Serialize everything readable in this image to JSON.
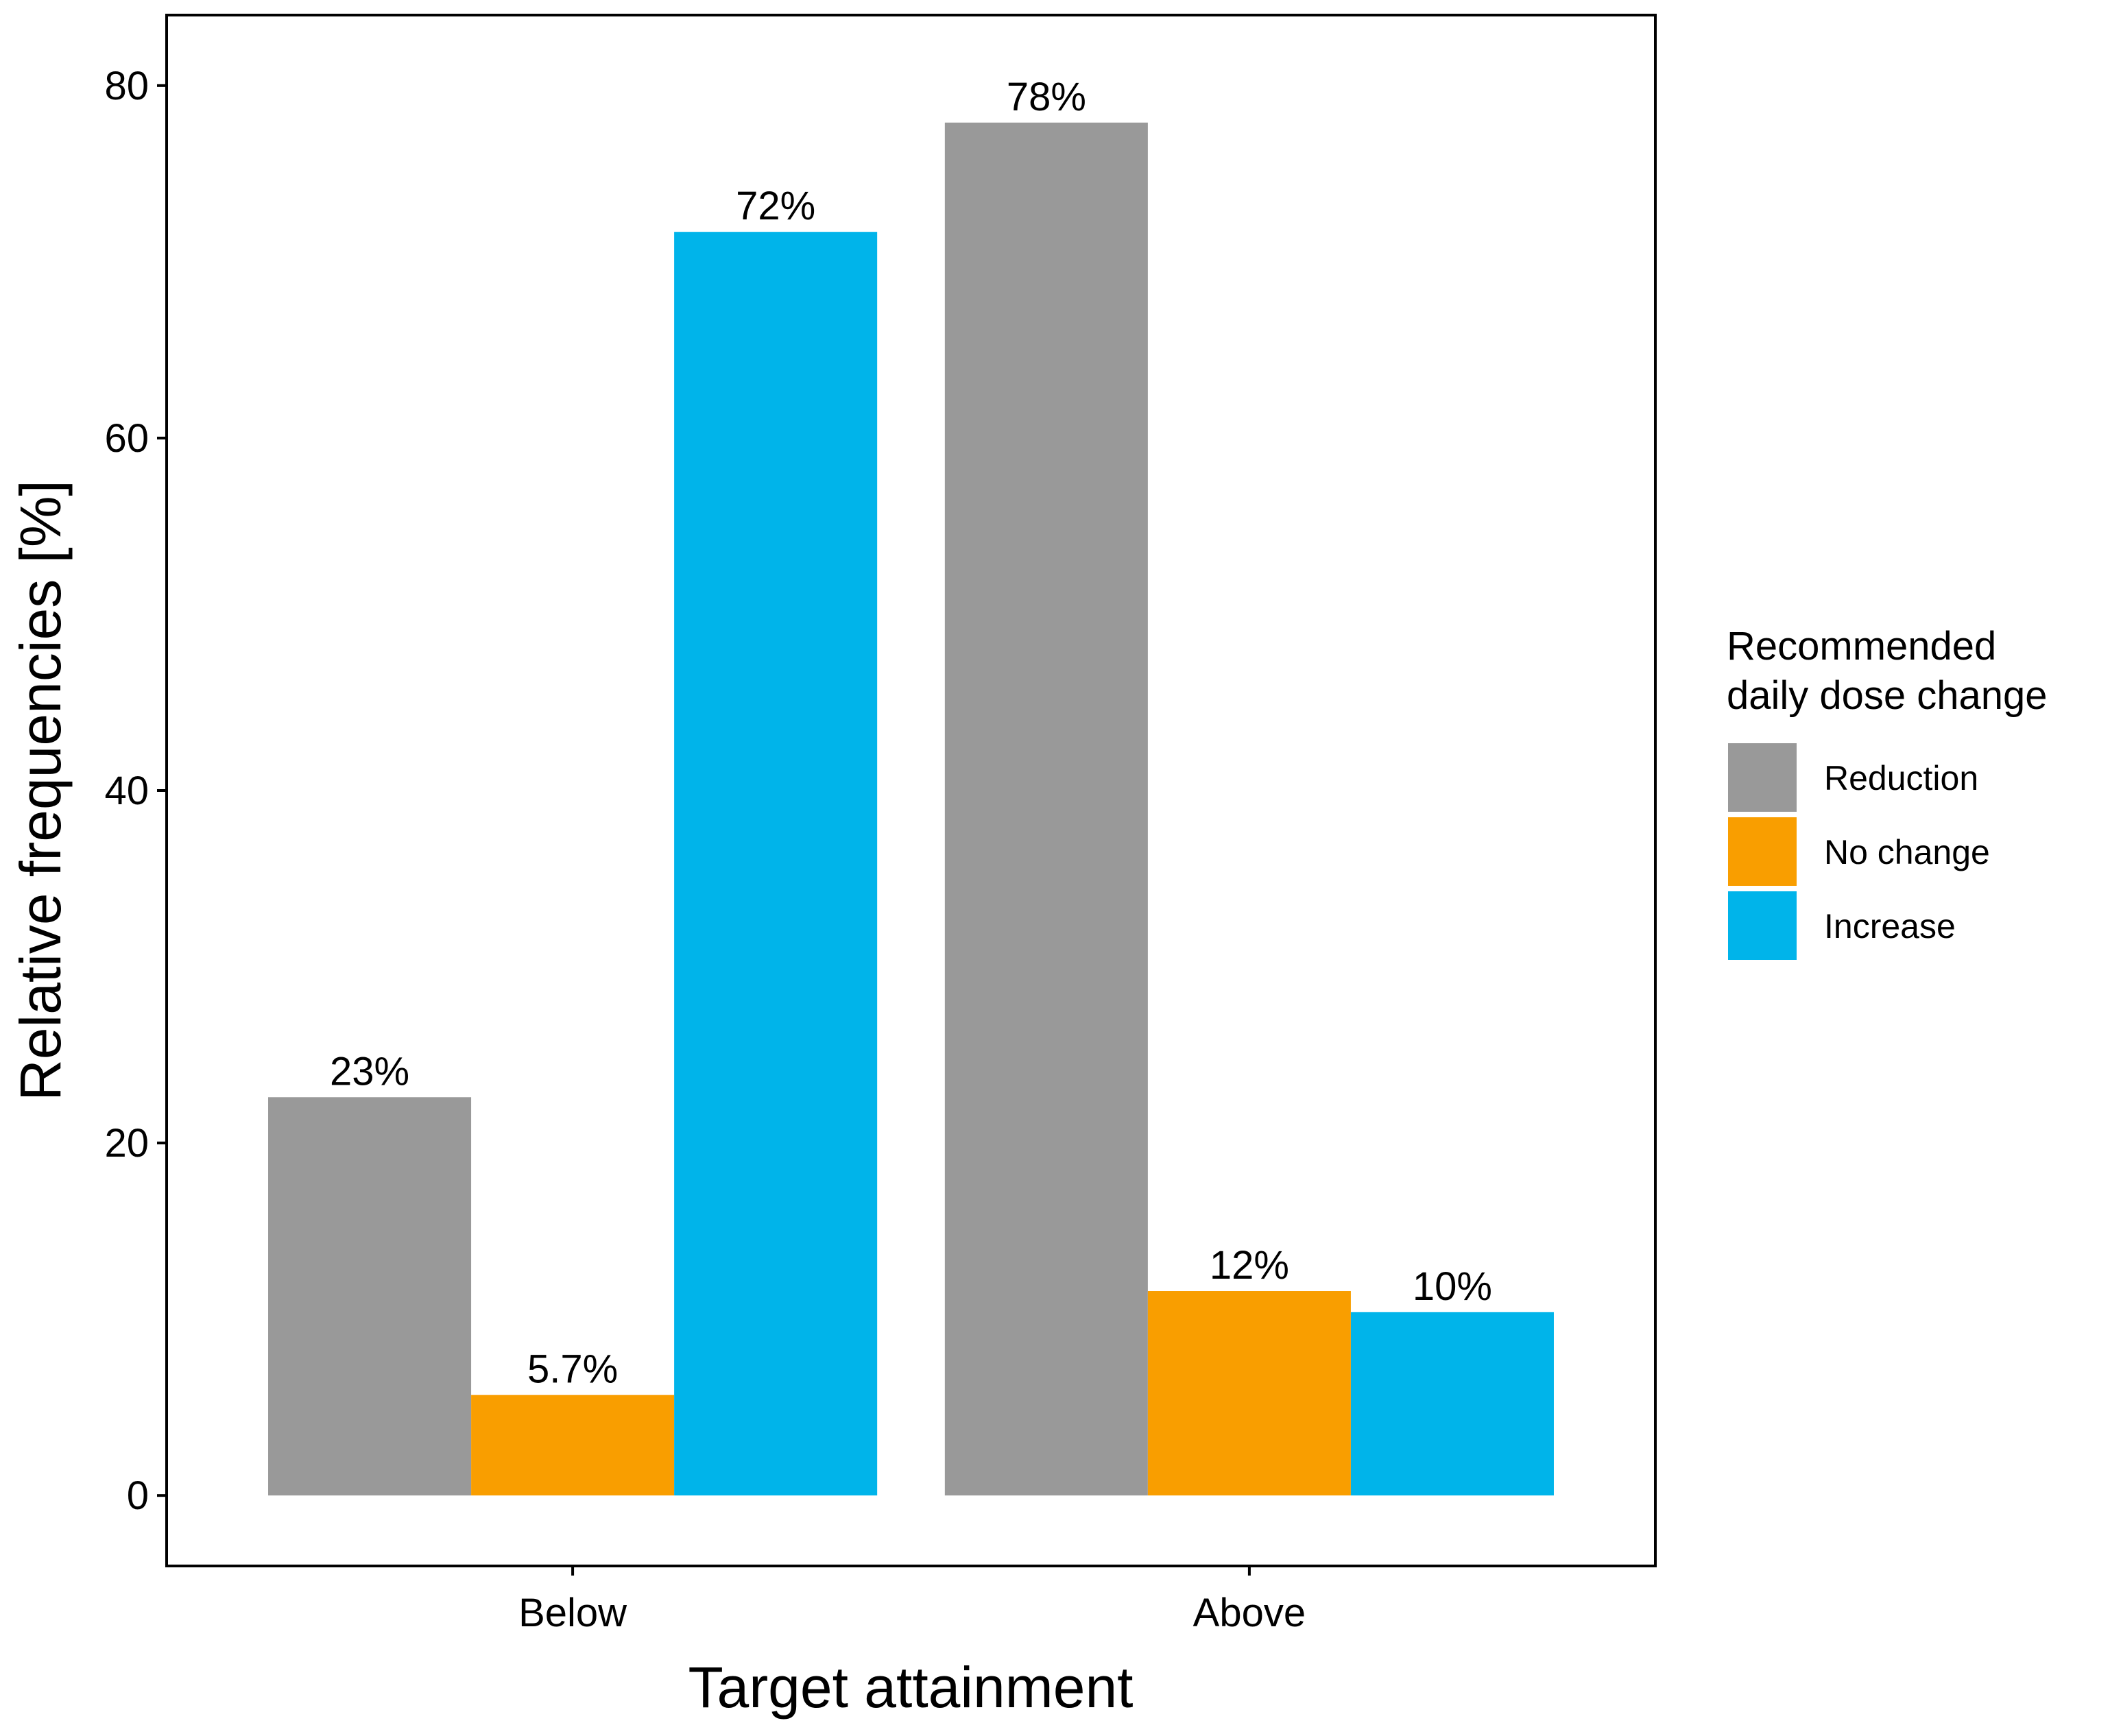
{
  "chart_data": {
    "type": "bar",
    "title": "",
    "xlabel": "Target attainment",
    "ylabel": "Relative frequencies [%]",
    "ylim": [
      -4,
      84
    ],
    "yticks": [
      0,
      20,
      40,
      60,
      80
    ],
    "categories": [
      "Below",
      "Above"
    ],
    "grid": false,
    "legend": {
      "title_line1": "Recommended",
      "title_line2": "daily dose change",
      "placement": "right"
    },
    "series": [
      {
        "name": "Reduction",
        "color": "#999999",
        "values": [
          22.6,
          77.9
        ],
        "labels": [
          "23%",
          "78%"
        ]
      },
      {
        "name": "No change",
        "color": "#F99E00",
        "values": [
          5.7,
          11.6
        ],
        "labels": [
          "5.7%",
          "12%"
        ]
      },
      {
        "name": "Increase",
        "color": "#00B4EA",
        "values": [
          71.7,
          10.4
        ],
        "labels": [
          "72%",
          "10%"
        ]
      }
    ]
  }
}
